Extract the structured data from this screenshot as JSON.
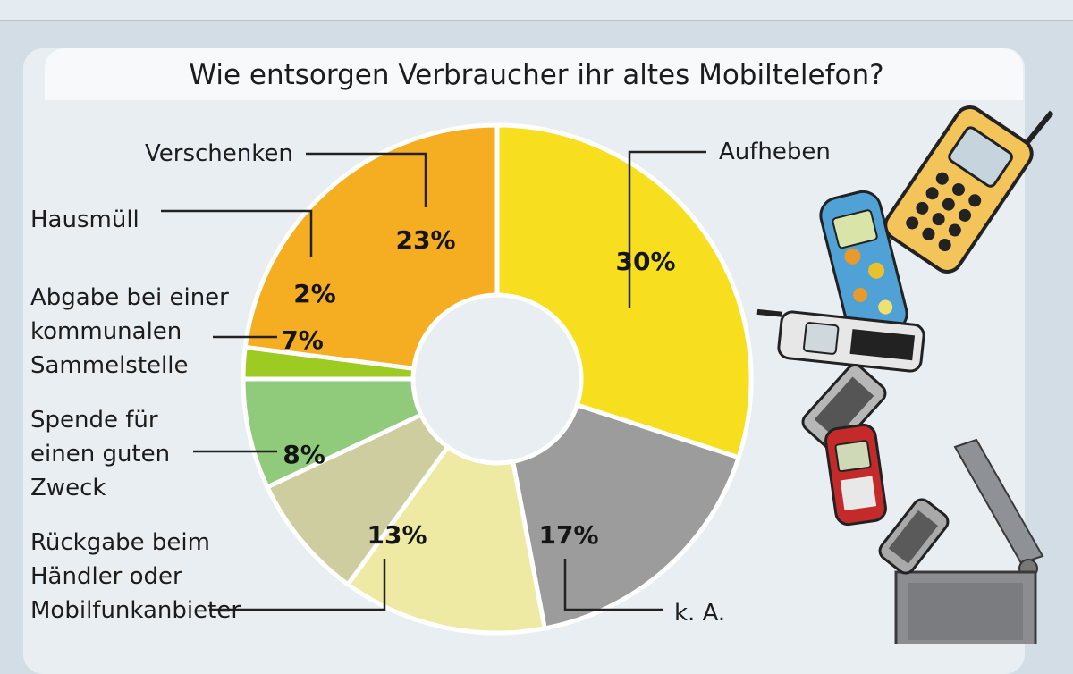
{
  "chart_data": {
    "type": "pie",
    "title": "Wie entsorgen Verbraucher ihr altes Mobiltelefon?",
    "unit": "%",
    "slices": [
      {
        "label": "Aufheben",
        "value": 30,
        "display": "30%",
        "color": "#f7df1f"
      },
      {
        "label": "k. A.",
        "value": 17,
        "display": "17%",
        "color": "#9c9c9c"
      },
      {
        "label": "Rückgabe beim Händler oder Mobilfunkanbieter",
        "lines": [
          "Rückgabe beim",
          "Händler oder",
          "Mobilfunkanbieter"
        ],
        "value": 13,
        "display": "13%",
        "color": "#eeeaa4"
      },
      {
        "label": "Spende für einen guten Zweck",
        "lines": [
          "Spende für",
          "einen guten",
          "Zweck"
        ],
        "value": 8,
        "display": "8%",
        "color": "#cdcd9f"
      },
      {
        "label": "Abgabe bei einer kommunalen Sammelstelle",
        "lines": [
          "Abgabe bei einer",
          "kommunalen",
          "Sammelstelle"
        ],
        "value": 7,
        "display": "7%",
        "color": "#8fcb7a"
      },
      {
        "label": "Hausmüll",
        "value": 2,
        "display": "2%",
        "color": "#9dcb22"
      },
      {
        "label": "Verschenken",
        "value": 23,
        "display": "23%",
        "color": "#f5ad22"
      }
    ]
  }
}
